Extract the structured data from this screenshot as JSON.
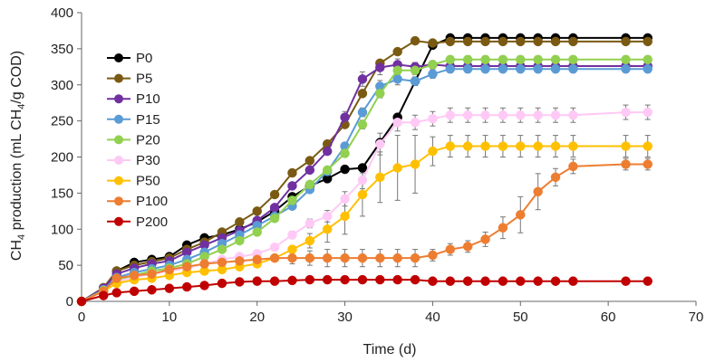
{
  "chart_data": {
    "type": "line",
    "title": "",
    "xlabel": "Time (d)",
    "ylabel_parts": [
      "CH",
      "4",
      " production (mL CH",
      "4",
      "/g COD)"
    ],
    "xlim": [
      0,
      70
    ],
    "ylim": [
      0,
      400
    ],
    "xticks": [
      0,
      10,
      20,
      30,
      40,
      50,
      60,
      70
    ],
    "yticks": [
      0,
      50,
      100,
      150,
      200,
      250,
      300,
      350,
      400
    ],
    "grid": false,
    "legend_position": "left",
    "x": [
      0,
      2.5,
      4,
      6,
      8,
      10,
      12,
      14,
      16,
      18,
      20,
      22,
      24,
      26,
      28,
      30,
      32,
      34,
      36,
      38,
      40,
      42,
      44,
      46,
      48,
      50,
      52,
      54,
      56,
      62,
      64.5
    ],
    "series": [
      {
        "name": "P0",
        "color": "#000000",
        "values": [
          0,
          18,
          42,
          54,
          58,
          62,
          78,
          88,
          92,
          100,
          110,
          125,
          145,
          160,
          170,
          183,
          185,
          220,
          255,
          305,
          355,
          365,
          365,
          365,
          365,
          365,
          365,
          365,
          365,
          365,
          365
        ],
        "errors": [
          0,
          3,
          3,
          3,
          3,
          3,
          3,
          3,
          3,
          3,
          3,
          3,
          3,
          3,
          3,
          3,
          3,
          3,
          3,
          3,
          3,
          3,
          3,
          3,
          3,
          3,
          3,
          3,
          3,
          3,
          3
        ]
      },
      {
        "name": "P5",
        "color": "#7a5a12",
        "values": [
          0,
          19,
          42,
          50,
          55,
          60,
          72,
          82,
          96,
          110,
          125,
          148,
          178,
          195,
          218,
          245,
          288,
          330,
          346,
          361,
          358,
          360,
          360,
          360,
          360,
          360,
          360,
          360,
          360,
          360,
          360
        ],
        "errors": [
          0,
          3,
          3,
          3,
          3,
          3,
          3,
          3,
          3,
          3,
          3,
          3,
          3,
          3,
          3,
          3,
          4,
          4,
          4,
          4,
          4,
          4,
          4,
          4,
          4,
          4,
          4,
          4,
          4,
          4,
          4
        ]
      },
      {
        "name": "P10",
        "color": "#7030a0",
        "values": [
          0,
          18,
          38,
          46,
          52,
          56,
          68,
          78,
          88,
          98,
          112,
          130,
          160,
          182,
          208,
          255,
          308,
          324,
          328,
          325,
          328,
          326,
          326,
          326,
          326,
          326,
          326,
          326,
          326,
          326,
          326
        ],
        "errors": [
          0,
          3,
          3,
          3,
          3,
          3,
          3,
          3,
          3,
          3,
          3,
          3,
          3,
          3,
          3,
          8,
          10,
          10,
          8,
          6,
          5,
          5,
          5,
          5,
          5,
          5,
          5,
          5,
          5,
          5,
          5
        ]
      },
      {
        "name": "P15",
        "color": "#5b9bd5",
        "values": [
          0,
          16,
          33,
          40,
          45,
          50,
          58,
          68,
          80,
          92,
          105,
          118,
          132,
          155,
          180,
          215,
          262,
          298,
          308,
          305,
          315,
          322,
          322,
          322,
          322,
          322,
          322,
          322,
          322,
          322,
          322
        ],
        "errors": [
          0,
          3,
          3,
          3,
          3,
          3,
          3,
          3,
          3,
          3,
          3,
          3,
          3,
          3,
          3,
          5,
          6,
          8,
          8,
          6,
          6,
          5,
          5,
          5,
          5,
          5,
          5,
          5,
          5,
          5,
          5
        ]
      },
      {
        "name": "P20",
        "color": "#92d050",
        "values": [
          0,
          15,
          30,
          36,
          42,
          46,
          52,
          62,
          72,
          84,
          96,
          115,
          140,
          162,
          182,
          205,
          245,
          288,
          320,
          320,
          328,
          335,
          335,
          335,
          335,
          335,
          335,
          335,
          335,
          335,
          335
        ],
        "errors": [
          0,
          3,
          3,
          3,
          3,
          3,
          3,
          3,
          3,
          3,
          3,
          3,
          3,
          3,
          3,
          5,
          6,
          6,
          6,
          6,
          5,
          5,
          5,
          5,
          5,
          5,
          5,
          5,
          5,
          5,
          5
        ]
      },
      {
        "name": "P30",
        "color": "#ffc9f5",
        "values": [
          0,
          14,
          28,
          33,
          38,
          42,
          46,
          52,
          58,
          62,
          66,
          75,
          92,
          108,
          118,
          142,
          168,
          218,
          248,
          248,
          253,
          258,
          258,
          258,
          258,
          258,
          258,
          258,
          258,
          262,
          262
        ],
        "errors": [
          0,
          3,
          3,
          3,
          3,
          3,
          3,
          3,
          3,
          3,
          3,
          4,
          5,
          6,
          8,
          10,
          12,
          15,
          12,
          10,
          10,
          10,
          10,
          10,
          10,
          10,
          10,
          10,
          10,
          10,
          10
        ]
      },
      {
        "name": "P50",
        "color": "#ffc000",
        "values": [
          0,
          14,
          25,
          30,
          32,
          36,
          40,
          42,
          44,
          48,
          52,
          60,
          72,
          84,
          100,
          118,
          148,
          172,
          185,
          190,
          208,
          215,
          215,
          215,
          215,
          215,
          215,
          215,
          215,
          215,
          215
        ],
        "errors": [
          0,
          3,
          3,
          3,
          3,
          3,
          3,
          3,
          3,
          3,
          3,
          4,
          5,
          10,
          18,
          25,
          30,
          35,
          45,
          40,
          20,
          15,
          15,
          15,
          15,
          15,
          15,
          15,
          15,
          15,
          15
        ]
      },
      {
        "name": "P100",
        "color": "#ed7d31",
        "values": [
          0,
          14,
          32,
          36,
          38,
          44,
          48,
          52,
          54,
          56,
          58,
          60,
          60,
          60,
          60,
          60,
          60,
          60,
          60,
          60,
          64,
          72,
          76,
          86,
          102,
          120,
          152,
          172,
          187,
          190,
          190
        ],
        "errors": [
          0,
          3,
          3,
          3,
          3,
          3,
          3,
          3,
          3,
          3,
          3,
          4,
          8,
          10,
          12,
          12,
          12,
          12,
          12,
          12,
          8,
          8,
          8,
          10,
          15,
          25,
          25,
          12,
          10,
          8,
          8
        ]
      },
      {
        "name": "P200",
        "color": "#c00000",
        "values": [
          0,
          8,
          12,
          14,
          16,
          18,
          20,
          22,
          25,
          27,
          28,
          28,
          29,
          30,
          30,
          30,
          30,
          30,
          30,
          30,
          28,
          28,
          28,
          28,
          28,
          28,
          28,
          28,
          28,
          28,
          28
        ],
        "errors": [
          0,
          2,
          2,
          2,
          2,
          2,
          2,
          2,
          2,
          2,
          2,
          2,
          2,
          2,
          2,
          2,
          2,
          2,
          2,
          2,
          2,
          2,
          2,
          2,
          2,
          2,
          2,
          2,
          2,
          2,
          2
        ]
      }
    ]
  }
}
